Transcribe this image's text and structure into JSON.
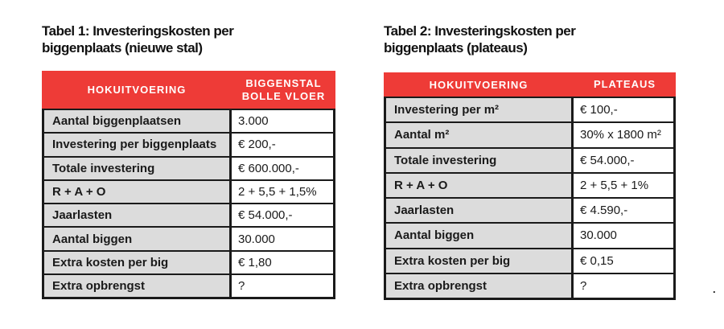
{
  "colors": {
    "header_red": "#ee3b37",
    "label_gray": "#dcdcdc",
    "border_black": "#1a1a1a",
    "header_text": "#ffffff",
    "page_background": "#ffffff"
  },
  "tables": [
    {
      "title_line1": "Tabel 1: Investeringskosten per",
      "title_line2": "biggenplaats (nieuwe stal)",
      "header": {
        "col1": "HOKUITVOERING",
        "col2_lines": [
          "BIGGENSTAL",
          "BOLLE VLOER"
        ]
      },
      "rows": [
        {
          "label": "Aantal biggenplaatsen",
          "value": "3.000"
        },
        {
          "label": "Investering per biggenplaats",
          "value": "€ 200,-"
        },
        {
          "label": "Totale investering",
          "value": "€ 600.000,-"
        },
        {
          "label": "R + A + O",
          "value": "2 + 5,5 + 1,5%"
        },
        {
          "label": "Jaarlasten",
          "value": "€ 54.000,-"
        },
        {
          "label": "Aantal biggen",
          "value": "30.000"
        },
        {
          "label": "Extra kosten per big",
          "value": "€ 1,80"
        },
        {
          "label": "Extra opbrengst",
          "value": "?"
        }
      ]
    },
    {
      "title_line1": "Tabel 2: Investeringskosten per",
      "title_line2": "biggenplaats (plateaus)",
      "header": {
        "col1": "HOKUITVOERING",
        "col2_lines": [
          "PLATEAUS"
        ]
      },
      "rows": [
        {
          "label": "Investering per m²",
          "value": "€ 100,-"
        },
        {
          "label": "Aantal m²",
          "value": "30% x 1800 m²"
        },
        {
          "label": "Totale investering",
          "value": "€ 54.000,-"
        },
        {
          "label": "R + A + O",
          "value": "2 + 5,5 + 1%"
        },
        {
          "label": "Jaarlasten",
          "value": "€ 4.590,-"
        },
        {
          "label": "Aantal biggen",
          "value": "30.000"
        },
        {
          "label": "Extra kosten per big",
          "value": "€ 0,15"
        },
        {
          "label": "Extra opbrengst",
          "value": "?"
        }
      ]
    }
  ],
  "artifact": {
    "dot": "."
  }
}
